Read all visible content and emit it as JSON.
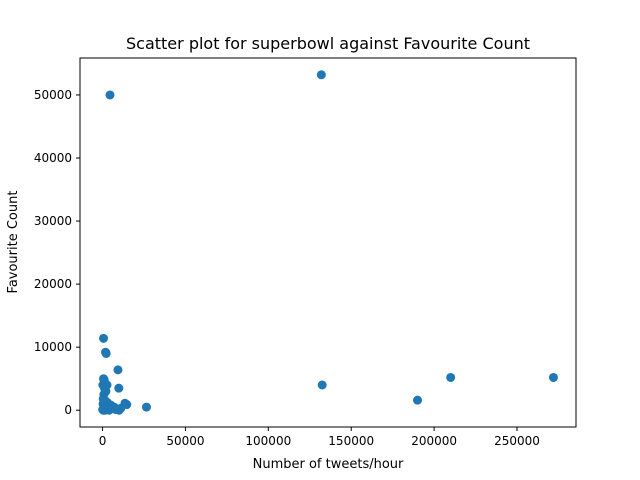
{
  "chart_data": {
    "type": "scatter",
    "title": "Scatter plot for superbowl against Favourite Count",
    "xlabel": "Number of tweets/hour",
    "ylabel": "Favourite Count",
    "xlim": [
      -13600,
      285600
    ],
    "ylim": [
      -2660,
      55860
    ],
    "xticks": [
      0,
      50000,
      100000,
      150000,
      200000,
      250000
    ],
    "yticks": [
      0,
      10000,
      20000,
      30000,
      40000,
      50000
    ],
    "grid": false,
    "marker_color": "#1f77b4",
    "points": [
      {
        "x": 132000,
        "y": 53200
      },
      {
        "x": 4500,
        "y": 50000
      },
      {
        "x": 600,
        "y": 11400
      },
      {
        "x": 1800,
        "y": 9200
      },
      {
        "x": 2200,
        "y": 9000
      },
      {
        "x": 9300,
        "y": 6400
      },
      {
        "x": 600,
        "y": 5000
      },
      {
        "x": 1000,
        "y": 4800
      },
      {
        "x": 200,
        "y": 4000
      },
      {
        "x": 1500,
        "y": 4100
      },
      {
        "x": 2700,
        "y": 4000
      },
      {
        "x": 1200,
        "y": 3500
      },
      {
        "x": 9800,
        "y": 3500
      },
      {
        "x": 2000,
        "y": 3000
      },
      {
        "x": 800,
        "y": 2500
      },
      {
        "x": 400,
        "y": 1800
      },
      {
        "x": 1700,
        "y": 1500
      },
      {
        "x": 300,
        "y": 1000
      },
      {
        "x": 3000,
        "y": 1200
      },
      {
        "x": 5000,
        "y": 800
      },
      {
        "x": 13500,
        "y": 1100
      },
      {
        "x": 14600,
        "y": 900
      },
      {
        "x": 7000,
        "y": 500
      },
      {
        "x": 6500,
        "y": 300
      },
      {
        "x": 11000,
        "y": 300
      },
      {
        "x": 3500,
        "y": 400
      },
      {
        "x": 2500,
        "y": 200
      },
      {
        "x": 1000,
        "y": 600
      },
      {
        "x": 100,
        "y": 100
      },
      {
        "x": 500,
        "y": 0
      },
      {
        "x": 1500,
        "y": 0
      },
      {
        "x": 4000,
        "y": 0
      },
      {
        "x": 8000,
        "y": 100
      },
      {
        "x": 10000,
        "y": 0
      },
      {
        "x": 26500,
        "y": 500
      },
      {
        "x": 132500,
        "y": 4000
      },
      {
        "x": 190000,
        "y": 1600
      },
      {
        "x": 210000,
        "y": 5200
      },
      {
        "x": 272000,
        "y": 5200
      }
    ]
  }
}
